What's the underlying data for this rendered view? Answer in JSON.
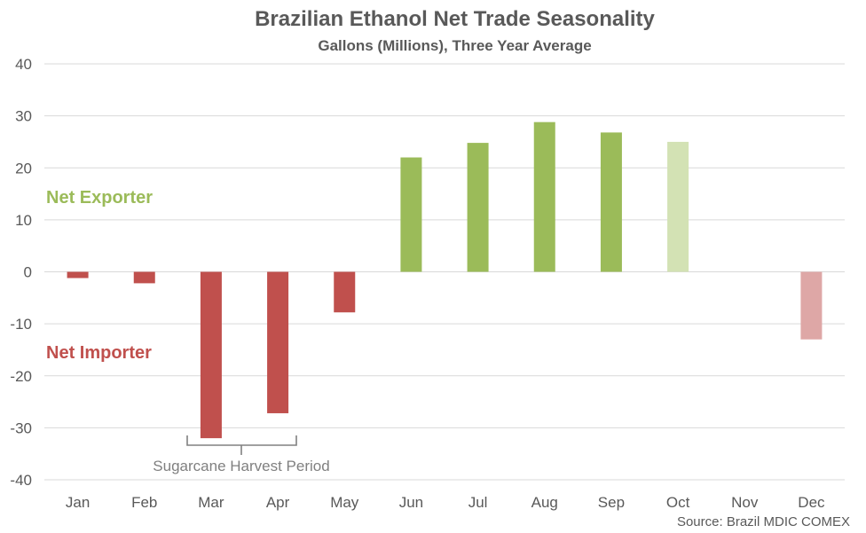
{
  "chart_data": {
    "type": "bar",
    "title": "Brazilian Ethanol Net Trade Seasonality",
    "subtitle": "Gallons (Millions), Three Year Average",
    "categories": [
      "Jan",
      "Feb",
      "Mar",
      "Apr",
      "May",
      "Jun",
      "Jul",
      "Aug",
      "Sep",
      "Oct",
      "Nov",
      "Dec"
    ],
    "values": [
      -1.2,
      -2.2,
      -32,
      -27.2,
      -7.8,
      22,
      24.8,
      28.8,
      26.8,
      25,
      0,
      -13
    ],
    "projected": [
      false,
      false,
      false,
      false,
      false,
      false,
      false,
      false,
      false,
      true,
      false,
      true
    ],
    "ylim": [
      -40,
      40
    ],
    "yticks": [
      40,
      30,
      20,
      10,
      0,
      -10,
      -20,
      -30,
      -40
    ],
    "grid": true,
    "colors": {
      "positive": "#9bbb59",
      "positive_projected": "#d3e2b4",
      "negative": "#c0504d",
      "negative_projected": "#dea7a6",
      "grid": "#d9d9d9",
      "text": "#595959"
    },
    "annotations": {
      "net_exporter": "Net Exporter",
      "net_importer": "Net Importer",
      "harvest_period": "Sugarcane Harvest Period"
    },
    "source": "Source: Brazil MDIC COMEX"
  }
}
